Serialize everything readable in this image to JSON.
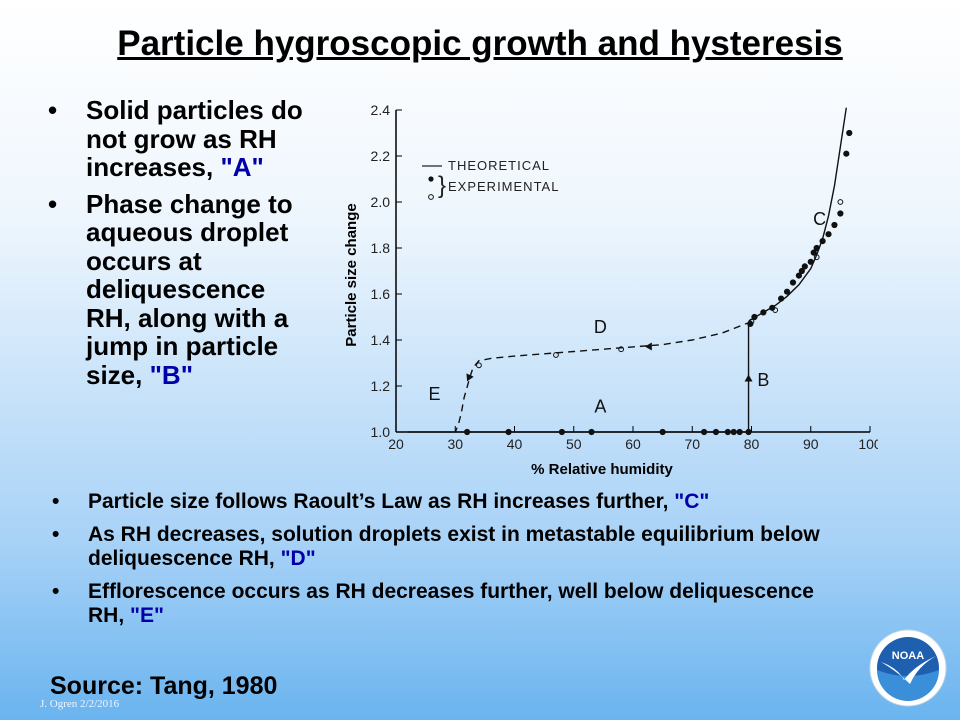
{
  "title": "Particle hygroscopic growth and hysteresis",
  "bullets_left": [
    {
      "text": "Solid particles do not grow as RH increases, ",
      "tag": "\"A\""
    },
    {
      "text": "Phase change to aqueous droplet occurs at deliquescence RH, along with a jump in particle size, ",
      "tag": "\"B\""
    }
  ],
  "bullets_bottom": [
    {
      "text": "Particle size follows Raoult’s Law as RH increases further, ",
      "tag": "\"C\""
    },
    {
      "text": "As RH decreases, solution droplets exist in metastable equilibrium below deliquescence RH, ",
      "tag": "\"D\""
    },
    {
      "text": "Efflorescence occurs as RH decreases further, well below deliquescence RH, ",
      "tag": "\"E\""
    }
  ],
  "bullet_symbol": "•",
  "source": "Source:  Tang, 1980",
  "footer": "J. Ogren  2/2/2016",
  "logo_text": "NOAA",
  "chart_data": {
    "type": "scatter",
    "xlabel": "% Relative humidity",
    "ylabel": "Particle size change",
    "xlim": [
      20,
      100
    ],
    "ylim": [
      1.0,
      2.4
    ],
    "xticks": [
      20,
      30,
      40,
      50,
      60,
      70,
      80,
      90,
      100
    ],
    "yticks": [
      1.0,
      1.2,
      1.4,
      1.6,
      1.8,
      2.0,
      2.2,
      2.4
    ],
    "ytick_labels": [
      "1.0",
      "1.2",
      "1.4",
      "1.6",
      "1.8",
      "2.0",
      "2.2",
      "2.4"
    ],
    "legend": {
      "position": "top-left",
      "theoretical": "THEORETICAL",
      "experimental": "EXPERIMENTAL"
    },
    "annotations": [
      {
        "text": "A",
        "x": 54.5,
        "y": 1.085
      },
      {
        "text": "B",
        "x": 82.0,
        "y": 1.2
      },
      {
        "text": "C",
        "x": 91.5,
        "y": 1.9
      },
      {
        "text": "D",
        "x": 54.5,
        "y": 1.43
      },
      {
        "text": "E",
        "x": 26.5,
        "y": 1.14
      }
    ],
    "series": [
      {
        "type": "line",
        "style": "solid",
        "x": [
          22,
          30,
          40,
          50,
          60,
          70,
          79.5
        ],
        "y": [
          1.0,
          1.0,
          1.0,
          1.0,
          1.0,
          1.0,
          1.0
        ]
      },
      {
        "type": "line",
        "style": "solid",
        "x": [
          79.5,
          79.5
        ],
        "y": [
          1.0,
          1.48
        ]
      },
      {
        "type": "line",
        "style": "solid",
        "x": [
          79.5,
          80,
          82,
          84,
          86,
          88,
          90,
          91,
          92,
          93,
          94,
          95,
          96
        ],
        "y": [
          1.48,
          1.49,
          1.52,
          1.55,
          1.59,
          1.64,
          1.71,
          1.77,
          1.84,
          1.94,
          2.07,
          2.24,
          2.41
        ]
      },
      {
        "type": "line",
        "style": "dashed",
        "x": [
          80,
          75,
          70,
          65,
          60,
          55,
          50,
          45,
          40,
          36,
          34,
          33,
          32.5,
          31.5,
          31,
          30.5,
          30
        ],
        "y": [
          1.48,
          1.43,
          1.4,
          1.38,
          1.37,
          1.36,
          1.35,
          1.34,
          1.33,
          1.32,
          1.31,
          1.28,
          1.24,
          1.15,
          1.08,
          1.03,
          1.0
        ]
      },
      {
        "name": "solid",
        "type": "scatter",
        "marker": "filled",
        "x": [
          32,
          39,
          48,
          53,
          65,
          72,
          74,
          76,
          77,
          78,
          79.5,
          79.8,
          80.5,
          82,
          83.5,
          85,
          86,
          87,
          88,
          88.5,
          89,
          90,
          90.5,
          91,
          92,
          93,
          94,
          95,
          96,
          96.5
        ],
        "y": [
          1.0,
          1.0,
          1.0,
          1.0,
          1.0,
          1.0,
          1.0,
          1.0,
          1.0,
          1.0,
          1.0,
          1.47,
          1.5,
          1.52,
          1.54,
          1.58,
          1.61,
          1.65,
          1.68,
          1.7,
          1.72,
          1.74,
          1.78,
          1.8,
          1.83,
          1.86,
          1.9,
          1.95,
          2.21,
          2.3
        ]
      },
      {
        "name": "aqueous",
        "type": "scatter",
        "marker": "open",
        "x": [
          34,
          47,
          58,
          80,
          84,
          91,
          95
        ],
        "y": [
          1.29,
          1.335,
          1.36,
          1.48,
          1.53,
          1.76,
          2.0
        ]
      }
    ]
  }
}
